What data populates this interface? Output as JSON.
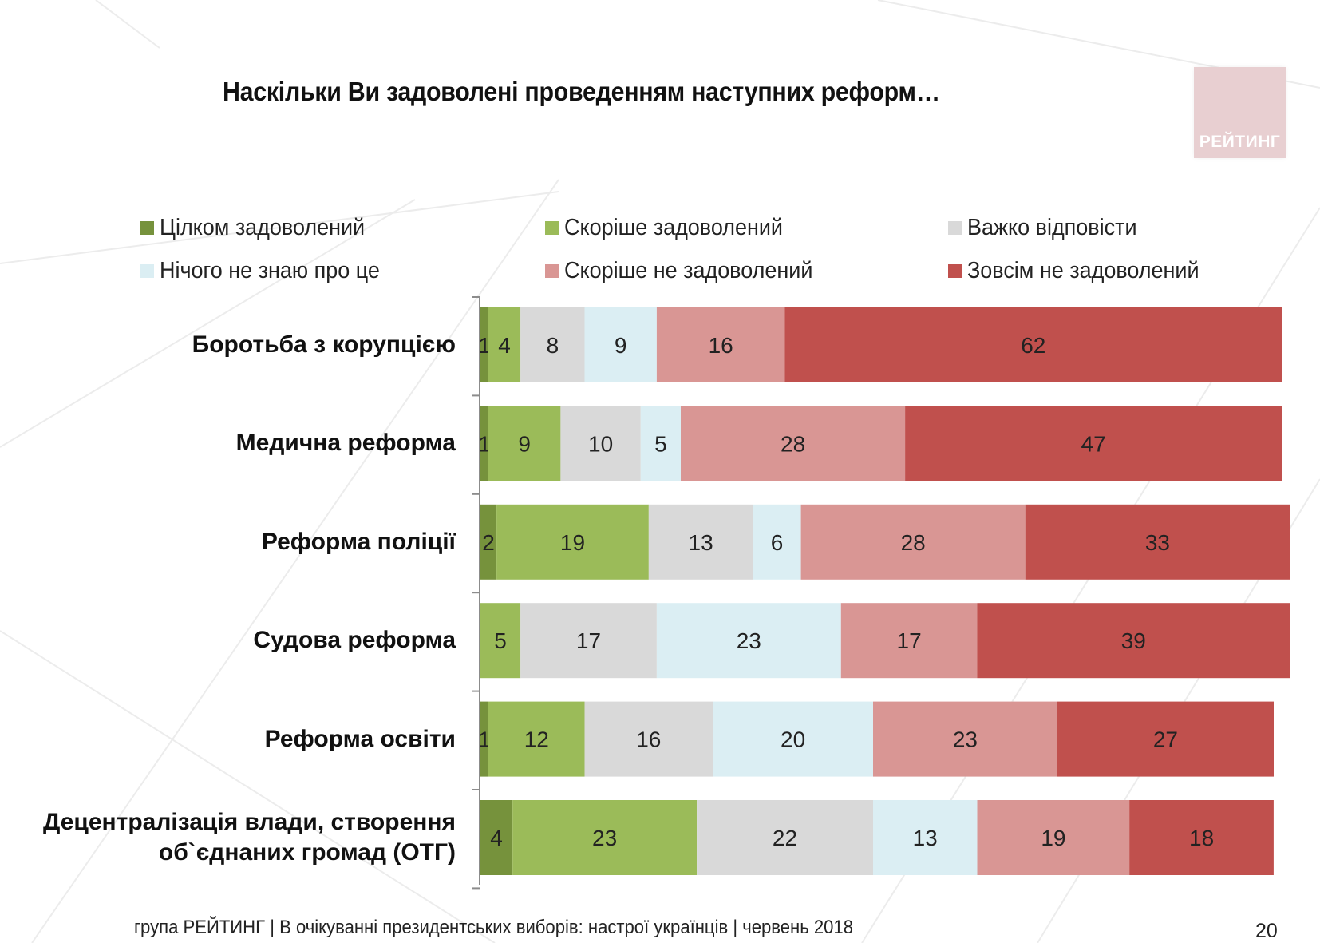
{
  "title": "Наскільки Ви задоволені проведенням наступних реформ…",
  "logo": {
    "text": "РЕЙТИНГ"
  },
  "footer": {
    "text": "група РЕЙТИНГ  | В очікуванні президентських виборів: настрої українців |  червень 2018",
    "page": "20"
  },
  "chart_data": {
    "type": "bar",
    "orientation": "horizontal",
    "stacked": true,
    "title": "Наскільки Ви задоволені проведенням наступних реформ…",
    "xlim": [
      0,
      100
    ],
    "legend_position": "top",
    "categories": [
      "Боротьба з корупцією",
      "Медична реформа",
      "Реформа поліції",
      "Судова реформа",
      "Реформа освіти",
      "Децентралізація влади, створення\nоб`єднаних громад (ОТГ)"
    ],
    "series": [
      {
        "name": "Цілком задоволений",
        "color": "#76923c",
        "values": [
          1,
          1,
          2,
          0,
          1,
          4
        ]
      },
      {
        "name": "Скоріше задоволений",
        "color": "#9bbb59",
        "values": [
          4,
          9,
          19,
          5,
          12,
          23
        ]
      },
      {
        "name": "Важко відповісти",
        "color": "#d9d9d9",
        "values": [
          8,
          10,
          13,
          17,
          16,
          22
        ]
      },
      {
        "name": "Нічого не знаю про це",
        "color": "#dbeef3",
        "values": [
          9,
          5,
          6,
          23,
          20,
          13
        ]
      },
      {
        "name": "Скоріше не задоволений",
        "color": "#d99694",
        "values": [
          16,
          28,
          28,
          17,
          23,
          19
        ]
      },
      {
        "name": "Зовсім не задоволений",
        "color": "#c0504d",
        "values": [
          62,
          47,
          33,
          39,
          27,
          18
        ]
      }
    ]
  }
}
